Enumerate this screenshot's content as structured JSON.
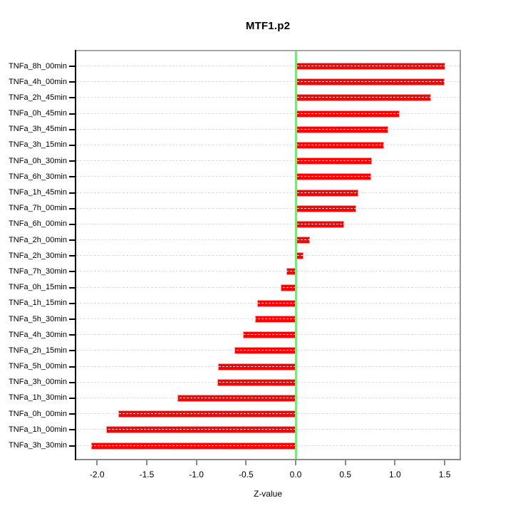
{
  "title": "MTF1.p2",
  "chart_data": {
    "type": "bar",
    "orientation": "horizontal",
    "title": "MTF1.p2",
    "xlabel": "Z-value",
    "ylabel": "",
    "categories": [
      "TNFa_8h_00min",
      "TNFa_4h_00min",
      "TNFa_2h_45min",
      "TNFa_0h_45min",
      "TNFa_3h_45min",
      "TNFa_3h_15min",
      "TNFa_0h_30min",
      "TNFa_6h_30min",
      "TNFa_1h_45min",
      "TNFa_7h_00min",
      "TNFa_6h_00min",
      "TNFa_2h_00min",
      "TNFa_2h_30min",
      "TNFa_7h_30min",
      "TNFa_0h_15min",
      "TNFa_1h_15min",
      "TNFa_5h_30min",
      "TNFa_4h_30min",
      "TNFa_2h_15min",
      "TNFa_5h_00min",
      "TNFa_3h_00min",
      "TNFa_1h_30min",
      "TNFa_0h_00min",
      "TNFa_1h_00min",
      "TNFa_3h_30min"
    ],
    "values": [
      1.51,
      1.5,
      1.36,
      1.05,
      0.93,
      0.89,
      0.77,
      0.76,
      0.63,
      0.61,
      0.49,
      0.14,
      0.08,
      -0.09,
      -0.15,
      -0.39,
      -0.41,
      -0.53,
      -0.62,
      -0.78,
      -0.79,
      -1.19,
      -1.79,
      -1.91,
      -2.06
    ],
    "xlim": [
      -2.21,
      1.65
    ],
    "xticks": [
      -2.0,
      -1.5,
      -1.0,
      -0.5,
      0.0,
      0.5,
      1.0,
      1.5
    ],
    "xtick_labels": [
      "-2.0",
      "-1.5",
      "-1.0",
      "-0.5",
      "0.0",
      "0.5",
      "1.0",
      "1.5"
    ],
    "grid": "horizontal dashed line per category",
    "legend": "none",
    "colors": {
      "bar_fill": "#ff0000",
      "bar_edge": "#ff9d9d",
      "zero_line": "#6ef06e",
      "grid_line": "#dedede",
      "box_top": "#a6a6a6",
      "box_right": "#9a9a9a",
      "box_bottom": "#8a8a8a",
      "axis_left": "#000000",
      "text": "#000000"
    }
  }
}
